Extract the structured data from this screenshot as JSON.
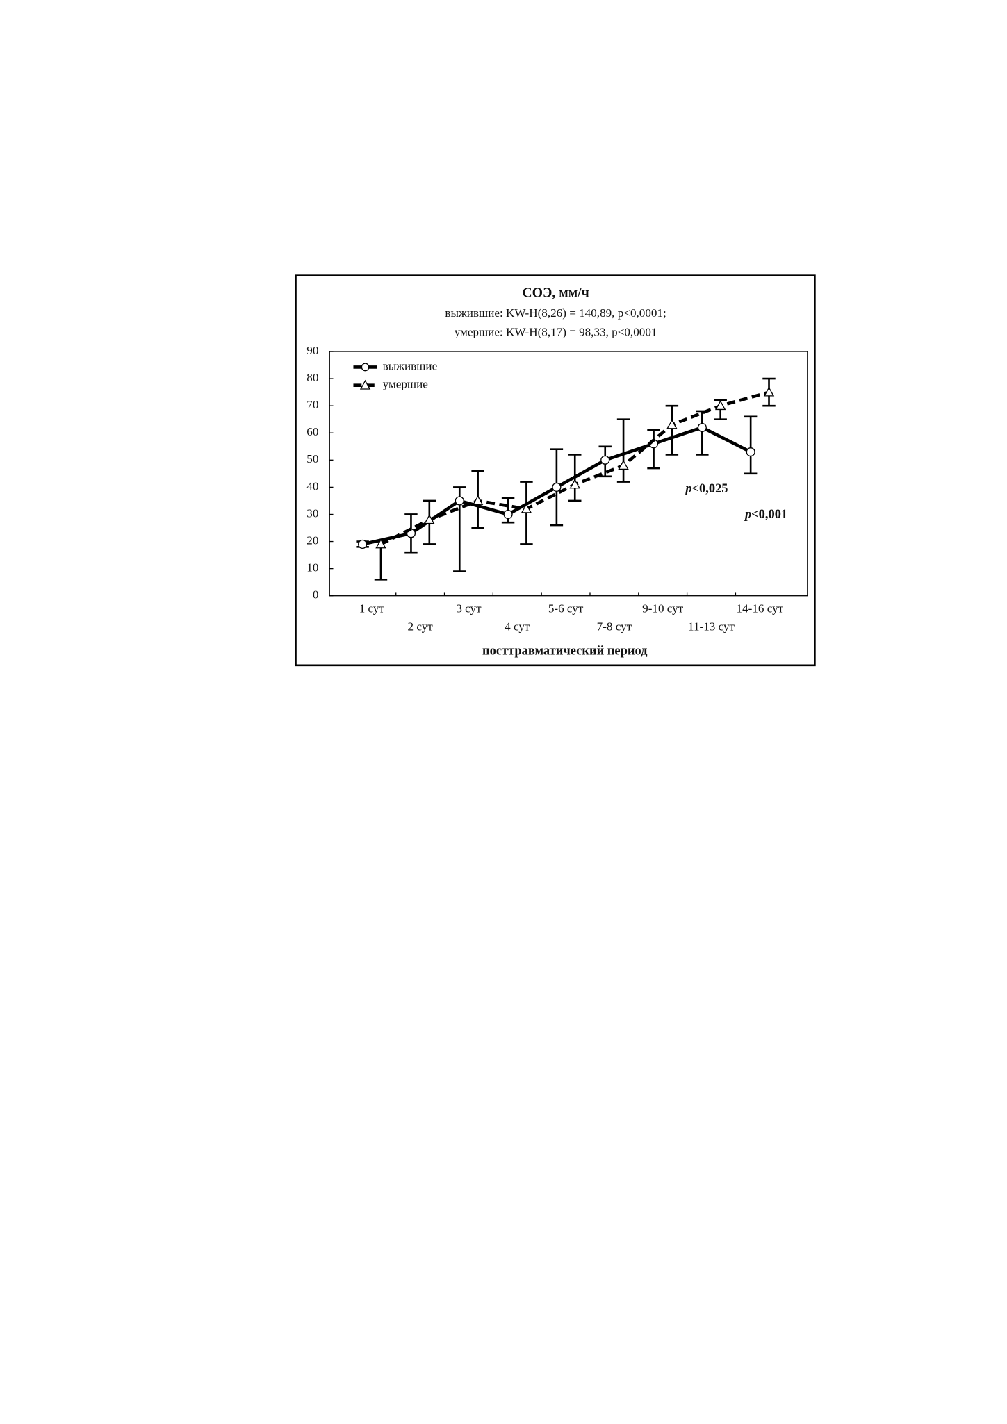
{
  "chart_data": {
    "type": "line",
    "title": "СОЭ, мм/ч",
    "subtitle": [
      "выжившие:  KW-H(8,26) = 140,89, p<0,0001;",
      "умершие:  KW-H(8,17) = 98,33, p<0,0001"
    ],
    "x_label": "посттравматический период",
    "categories": [
      "1 сут",
      "2 сут",
      "3 сут",
      "4 сут",
      "5-6 сут",
      "7-8 сут",
      "9-10 сут",
      "11-13 сут",
      "14-16 сут"
    ],
    "series": [
      {
        "name": "выжившие",
        "color": "#000000",
        "dash": false,
        "marker": "circle",
        "values": [
          19,
          23,
          35,
          30,
          40,
          50,
          56,
          62,
          53
        ],
        "lower": [
          18,
          16,
          9,
          27,
          26,
          44,
          47,
          52,
          45
        ],
        "upper": [
          20,
          30,
          40,
          36,
          54,
          55,
          61,
          68,
          66
        ]
      },
      {
        "name": "умершие",
        "color": "#000000",
        "dash": true,
        "marker": "triangle",
        "values": [
          19,
          28,
          35,
          32,
          41,
          48,
          63,
          70,
          75
        ],
        "lower": [
          6,
          19,
          25,
          19,
          35,
          42,
          52,
          65,
          70
        ],
        "upper": [
          20,
          35,
          46,
          42,
          52,
          65,
          70,
          72,
          80
        ]
      }
    ],
    "annotations": [
      "p<0,025",
      "p<0,001"
    ],
    "ylim": [
      0,
      90
    ],
    "yticks": [
      0,
      10,
      20,
      30,
      40,
      50,
      60,
      70,
      80,
      90
    ]
  }
}
